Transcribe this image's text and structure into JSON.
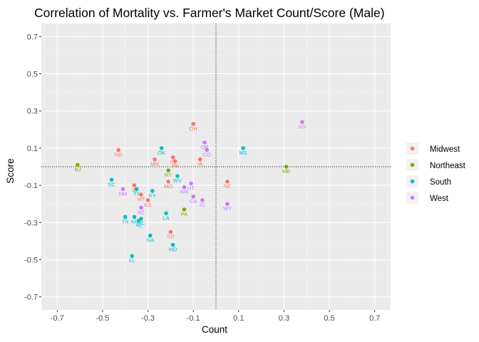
{
  "chart_data": {
    "type": "scatter",
    "title": "Correlation of Mortality vs. Farmer's Market Count/Score (Male)",
    "xlabel": "Count",
    "ylabel": "Score",
    "xlim": [
      -0.77,
      0.77
    ],
    "ylim": [
      -0.77,
      0.77
    ],
    "xticks": [
      "-0.7",
      "-0.5",
      "-0.3",
      "-0.1",
      "0.1",
      "0.3",
      "0.5",
      "0.7"
    ],
    "yticks": [
      "-0.7",
      "-0.5",
      "-0.3",
      "-0.1",
      "0.1",
      "0.3",
      "0.5",
      "0.7"
    ],
    "reference_lines": {
      "x": 0,
      "y": 0,
      "style": "dotted"
    },
    "grid": true,
    "legend_position": "right",
    "legend_title": "",
    "series": [
      {
        "name": "Midwest",
        "color": "#F8766D",
        "points": [
          {
            "label": "OH",
            "x": -0.1,
            "y": 0.23
          },
          {
            "label": "ND",
            "x": -0.43,
            "y": 0.09
          },
          {
            "label": "MN",
            "x": -0.27,
            "y": 0.04
          },
          {
            "label": "NE",
            "x": 0.05,
            "y": -0.08
          },
          {
            "label": "IA",
            "x": -0.07,
            "y": 0.04
          },
          {
            "label": "IN",
            "x": -0.19,
            "y": 0.05
          },
          {
            "label": "MI",
            "x": -0.18,
            "y": 0.03
          },
          {
            "label": "MO",
            "x": -0.21,
            "y": -0.08
          },
          {
            "label": "IL",
            "x": -0.36,
            "y": -0.1
          },
          {
            "label": "MT",
            "x": -0.33,
            "y": -0.15
          },
          {
            "label": "KS",
            "x": -0.3,
            "y": -0.18
          },
          {
            "label": "SD",
            "x": -0.2,
            "y": -0.35
          }
        ]
      },
      {
        "name": "Northeast",
        "color": "#7CAE00",
        "points": [
          {
            "label": "NJ",
            "x": -0.61,
            "y": 0.01
          },
          {
            "label": "ME",
            "x": 0.31,
            "y": 0.0
          },
          {
            "label": "NY",
            "x": -0.21,
            "y": -0.02
          },
          {
            "label": "PA",
            "x": -0.14,
            "y": -0.23
          }
        ]
      },
      {
        "name": "South",
        "color": "#00BFC4",
        "points": [
          {
            "label": "OK",
            "x": -0.24,
            "y": 0.1
          },
          {
            "label": "MS",
            "x": 0.12,
            "y": 0.1
          },
          {
            "label": "SC",
            "x": -0.46,
            "y": -0.07
          },
          {
            "label": "WV",
            "x": -0.17,
            "y": -0.05
          },
          {
            "label": "KY",
            "x": -0.28,
            "y": -0.13
          },
          {
            "label": "TX",
            "x": -0.35,
            "y": -0.12
          },
          {
            "label": "TN",
            "x": -0.4,
            "y": -0.27
          },
          {
            "label": "AR",
            "x": -0.36,
            "y": -0.27
          },
          {
            "label": "NC",
            "x": -0.33,
            "y": -0.28
          },
          {
            "label": "AL",
            "x": -0.34,
            "y": -0.29
          },
          {
            "label": "LA",
            "x": -0.22,
            "y": -0.25
          },
          {
            "label": "GA",
            "x": -0.29,
            "y": -0.37
          },
          {
            "label": "MD",
            "x": -0.19,
            "y": -0.42
          },
          {
            "label": "FL",
            "x": -0.37,
            "y": -0.48
          }
        ]
      },
      {
        "name": "West",
        "color": "#C77CFF",
        "points": [
          {
            "label": "NV",
            "x": 0.38,
            "y": 0.24
          },
          {
            "label": "OR",
            "x": -0.05,
            "y": 0.13
          },
          {
            "label": "CO",
            "x": -0.04,
            "y": 0.09
          },
          {
            "label": "NM",
            "x": -0.41,
            "y": -0.12
          },
          {
            "label": "WA",
            "x": -0.14,
            "y": -0.11
          },
          {
            "label": "UT",
            "x": -0.11,
            "y": -0.09
          },
          {
            "label": "CA",
            "x": -0.1,
            "y": -0.16
          },
          {
            "label": "ID",
            "x": -0.06,
            "y": -0.18
          },
          {
            "label": "WY",
            "x": 0.05,
            "y": -0.2
          },
          {
            "label": "AZ",
            "x": -0.33,
            "y": -0.22
          }
        ]
      }
    ]
  }
}
